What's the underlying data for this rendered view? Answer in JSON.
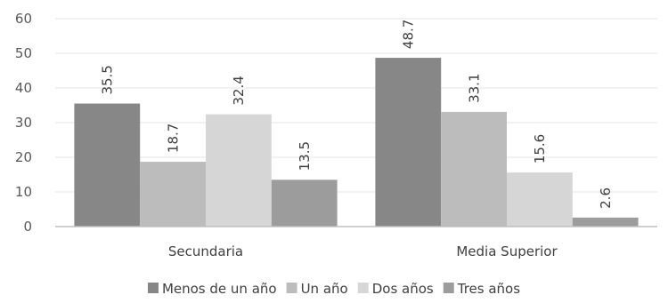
{
  "chart_data": {
    "type": "bar",
    "categories": [
      "Secundaria",
      "Media Superior"
    ],
    "series": [
      {
        "name": "Menos de un año",
        "values": [
          35.5,
          48.7
        ],
        "color": "#878787"
      },
      {
        "name": "Un año",
        "values": [
          18.7,
          33.1
        ],
        "color": "#bcbcbc"
      },
      {
        "name": "Dos años",
        "values": [
          32.4,
          15.6
        ],
        "color": "#d6d6d6"
      },
      {
        "name": "Tres años",
        "values": [
          13.5,
          2.6
        ],
        "color": "#9c9c9c"
      }
    ],
    "y_ticks": [
      "0",
      "10",
      "20",
      "30",
      "40",
      "50",
      "60"
    ],
    "ylim": [
      0,
      60
    ],
    "grid": true,
    "legend_position": "bottom",
    "data_labels": true,
    "data_label_rotation": "vertical"
  }
}
